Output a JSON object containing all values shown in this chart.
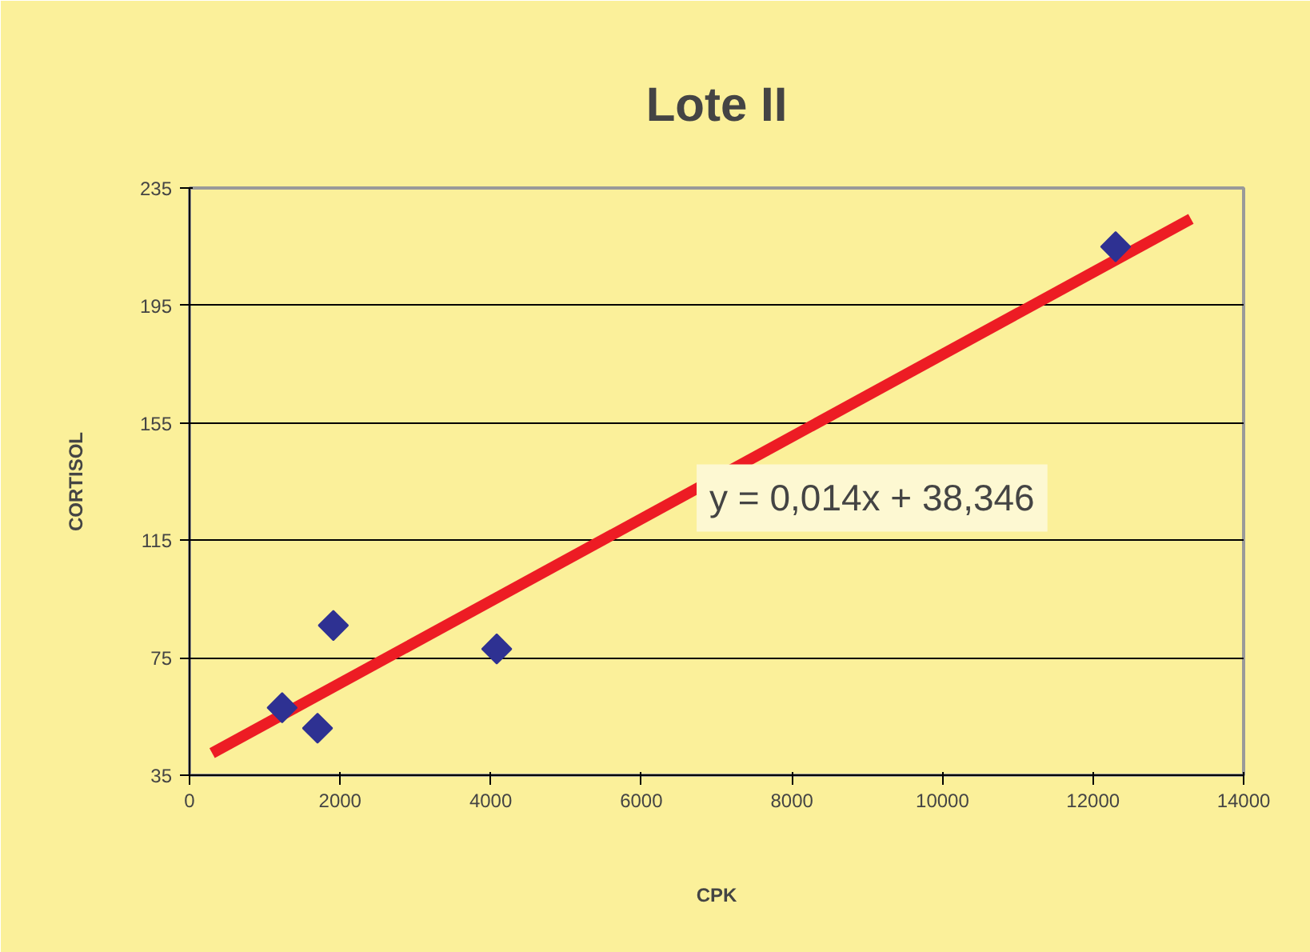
{
  "chart_data": {
    "type": "scatter",
    "title": "Lote II",
    "xlabel": "CPK",
    "ylabel": "CORTISOL",
    "annotations": [
      "y = 0,014x + 38,346"
    ],
    "marker": "diamond",
    "grid": "y",
    "xlim": [
      0,
      14000
    ],
    "xticks": [
      0,
      2000,
      4000,
      6000,
      8000,
      10000,
      12000,
      14000
    ],
    "ylim": [
      35,
      235
    ],
    "yticks": [
      35,
      75,
      115,
      155,
      195,
      235
    ],
    "series": [
      {
        "color": "#2e3192",
        "x": [
          1230,
          1700,
          1910,
          4080,
          12300
        ],
        "values": [
          58,
          51,
          86,
          78,
          215
        ]
      },
      {
        "type": "line",
        "marker": "none",
        "color": "#ed1c24",
        "x": [
          300,
          13300
        ],
        "values": [
          42.5,
          224.5
        ]
      }
    ]
  }
}
